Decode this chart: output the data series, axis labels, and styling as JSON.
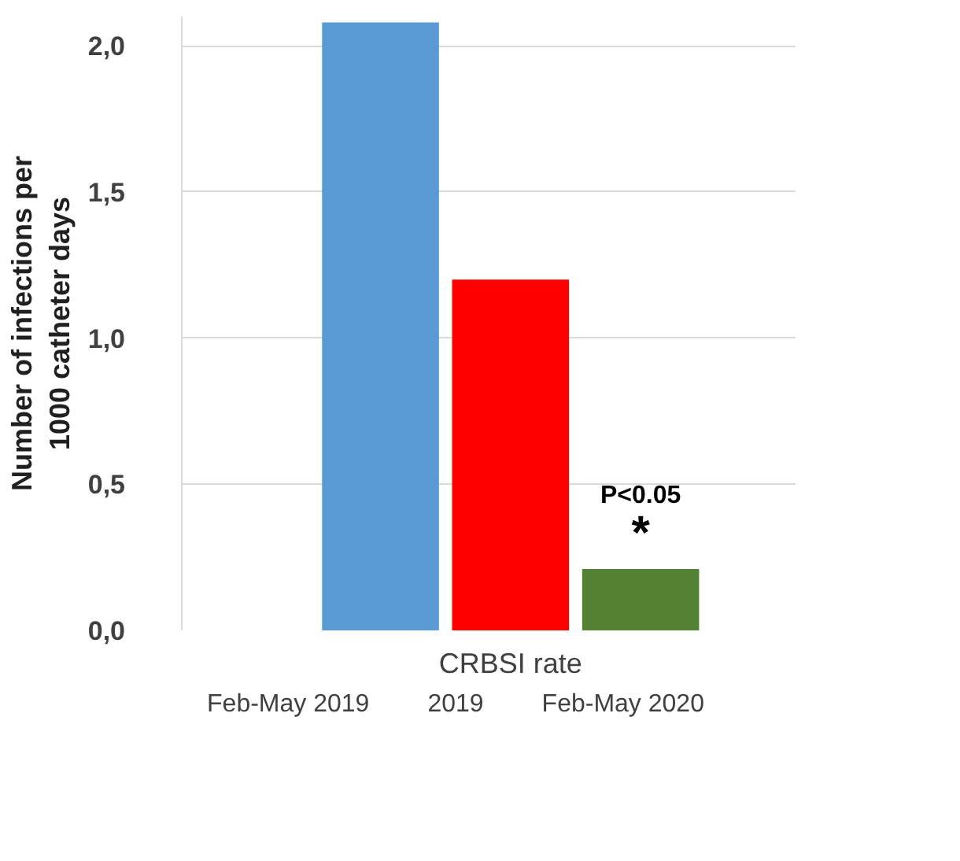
{
  "chart_data": {
    "type": "bar",
    "categories": [
      "CRBSI rate"
    ],
    "series": [
      {
        "name": "Feb-May 2019",
        "color": "#5b9bd5",
        "values": [
          2.08
        ]
      },
      {
        "name": "2019",
        "color": "#ff0000",
        "values": [
          1.2
        ]
      },
      {
        "name": "Feb-May 2020",
        "color": "#548235",
        "values": [
          0.21
        ]
      }
    ],
    "ylabel": "Number of infections per 1000 catheter days",
    "ylim": [
      0,
      2.1
    ],
    "yticks": [
      {
        "value": 0,
        "label": "0,0"
      },
      {
        "value": 0.5,
        "label": "0,5"
      },
      {
        "value": 1,
        "label": "1,0"
      },
      {
        "value": 1.5,
        "label": "1,5"
      },
      {
        "value": 2,
        "label": "2,0"
      }
    ],
    "annotations": [
      "P<0.05",
      "*"
    ],
    "grid": "y",
    "legend": "bottom"
  }
}
